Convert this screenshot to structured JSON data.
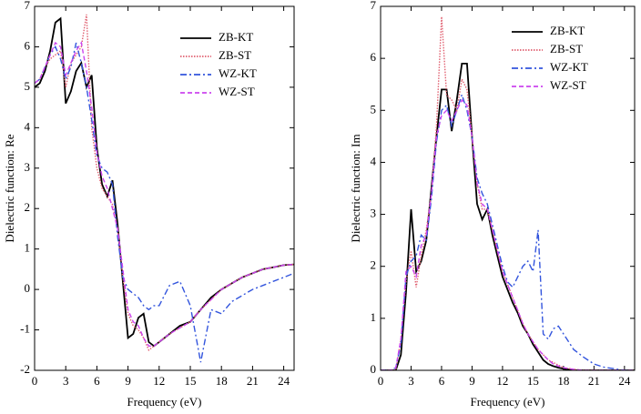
{
  "chart_data": [
    {
      "type": "line",
      "ylabel": "Dielectric function: Re",
      "xlabel": "Frequency (eV)",
      "x": [
        0,
        0.5,
        1,
        1.5,
        2,
        2.5,
        3,
        3.5,
        4,
        4.5,
        5,
        5.5,
        6,
        6.5,
        7,
        7.5,
        8,
        8.5,
        9,
        9.5,
        10,
        10.5,
        11,
        11.5,
        12,
        13,
        14,
        15,
        16,
        17,
        18,
        19,
        20,
        21,
        22,
        23,
        24,
        25
      ],
      "xlim": [
        0,
        25
      ],
      "xticks": [
        0,
        3,
        6,
        9,
        12,
        15,
        18,
        21,
        24
      ],
      "ylim": [
        -2,
        7
      ],
      "yticks": [
        -2,
        -1,
        0,
        1,
        2,
        3,
        4,
        5,
        6,
        7
      ],
      "legend": "upper right",
      "series": [
        {
          "name": "ZB-KT",
          "color": "#000000",
          "style": "solid",
          "values": [
            5.0,
            5.1,
            5.4,
            5.9,
            6.6,
            6.7,
            4.6,
            4.9,
            5.4,
            5.6,
            5.0,
            5.3,
            3.5,
            2.6,
            2.3,
            2.7,
            1.6,
            0.2,
            -1.2,
            -1.1,
            -0.7,
            -0.6,
            -1.3,
            -1.4,
            -1.3,
            -1.1,
            -0.9,
            -0.8,
            -0.5,
            -0.2,
            0,
            0.15,
            0.3,
            0.4,
            0.5,
            0.55,
            0.6,
            0.62
          ]
        },
        {
          "name": "ZB-ST",
          "color": "#e06070",
          "style": "dotted",
          "values": [
            5.1,
            5.2,
            5.5,
            5.7,
            5.8,
            5.9,
            5.0,
            5.6,
            5.8,
            6.0,
            6.8,
            4.0,
            3.0,
            2.5,
            2.3,
            2.1,
            1.5,
            0.3,
            -0.6,
            -0.9,
            -1.0,
            -1.2,
            -1.5,
            -1.4,
            -1.3,
            -1.1,
            -0.95,
            -0.8,
            -0.5,
            -0.25,
            0,
            0.15,
            0.3,
            0.4,
            0.5,
            0.55,
            0.6,
            0.62
          ]
        },
        {
          "name": "WZ-KT",
          "color": "#3355dd",
          "style": "dashdot",
          "values": [
            5.1,
            5.2,
            5.5,
            5.8,
            6.0,
            5.7,
            5.2,
            5.5,
            6.1,
            5.6,
            5.0,
            4.2,
            3.3,
            3.0,
            2.9,
            2.6,
            1.3,
            0.3,
            0,
            -0.1,
            -0.2,
            -0.4,
            -0.5,
            -0.4,
            -0.4,
            0.1,
            0.2,
            -0.4,
            -1.8,
            -0.5,
            -0.6,
            -0.3,
            -0.15,
            0,
            0.1,
            0.2,
            0.3,
            0.4
          ]
        },
        {
          "name": "WZ-ST",
          "color": "#cc44ee",
          "style": "dashed",
          "values": [
            5.1,
            5.2,
            5.5,
            5.8,
            6.1,
            6.0,
            5.3,
            5.6,
            5.9,
            6.1,
            5.4,
            4.5,
            3.4,
            2.8,
            2.5,
            2.0,
            1.5,
            0.5,
            -0.5,
            -0.8,
            -0.9,
            -1.2,
            -1.4,
            -1.4,
            -1.3,
            -1.1,
            -0.95,
            -0.8,
            -0.5,
            -0.25,
            0,
            0.15,
            0.3,
            0.4,
            0.5,
            0.55,
            0.6,
            0.62
          ]
        }
      ]
    },
    {
      "type": "line",
      "ylabel": "Dielectric function: Im",
      "xlabel": "Frequency (eV)",
      "x": [
        0,
        0.5,
        1,
        1.5,
        2,
        2.5,
        3,
        3.5,
        4,
        4.5,
        5,
        5.5,
        6,
        6.5,
        7,
        7.5,
        8,
        8.5,
        9,
        9.5,
        10,
        10.5,
        11,
        11.5,
        12,
        12.5,
        13,
        13.5,
        14,
        14.5,
        15,
        15.5,
        16,
        16.5,
        17,
        17.5,
        18,
        19,
        20,
        21,
        22,
        23,
        24,
        25
      ],
      "xlim": [
        0,
        25
      ],
      "xticks": [
        0,
        3,
        6,
        9,
        12,
        15,
        18,
        21,
        24
      ],
      "ylim": [
        0,
        7
      ],
      "yticks": [
        0,
        1,
        2,
        3,
        4,
        5,
        6,
        7
      ],
      "legend": "upper right",
      "series": [
        {
          "name": "ZB-KT",
          "color": "#000000",
          "style": "solid",
          "values": [
            0,
            0,
            0,
            0,
            0.3,
            1.5,
            3.1,
            1.9,
            2.1,
            2.5,
            3.5,
            4.5,
            5.4,
            5.4,
            4.6,
            5.2,
            5.9,
            5.9,
            4.5,
            3.2,
            2.9,
            3.1,
            2.6,
            2.2,
            1.8,
            1.55,
            1.3,
            1.1,
            0.85,
            0.7,
            0.5,
            0.35,
            0.2,
            0.12,
            0.08,
            0.05,
            0.03,
            0,
            0,
            0,
            0,
            0,
            0,
            0
          ]
        },
        {
          "name": "ZB-ST",
          "color": "#e06070",
          "style": "dotted",
          "values": [
            0,
            0,
            0,
            0,
            0.6,
            1.7,
            2.3,
            1.6,
            2.2,
            2.7,
            3.4,
            4.7,
            6.8,
            5.3,
            5.2,
            5.0,
            5.6,
            5.4,
            4.5,
            3.6,
            3.1,
            3.1,
            2.7,
            2.3,
            1.9,
            1.65,
            1.4,
            1.15,
            0.9,
            0.7,
            0.55,
            0.4,
            0.3,
            0.2,
            0.15,
            0.1,
            0.05,
            0.02,
            0,
            0,
            0,
            0,
            0,
            0
          ]
        },
        {
          "name": "WZ-KT",
          "color": "#3355dd",
          "style": "dashdot",
          "values": [
            0,
            0,
            0,
            0.05,
            0.5,
            1.8,
            2.1,
            2.2,
            2.6,
            2.5,
            3.3,
            4.4,
            5.0,
            5.1,
            4.7,
            5.0,
            5.3,
            5.0,
            4.5,
            3.7,
            3.4,
            3.2,
            2.8,
            2.4,
            2.0,
            1.7,
            1.6,
            1.8,
            2.0,
            2.1,
            1.9,
            2.7,
            0.7,
            0.6,
            0.8,
            0.85,
            0.7,
            0.4,
            0.25,
            0.12,
            0.06,
            0.03,
            0,
            0
          ]
        },
        {
          "name": "WZ-ST",
          "color": "#cc44ee",
          "style": "dashed",
          "values": [
            0,
            0,
            0,
            0.05,
            0.6,
            1.9,
            2.0,
            1.8,
            2.4,
            2.6,
            3.4,
            4.5,
            4.9,
            5.0,
            4.8,
            5.0,
            5.2,
            5.1,
            4.5,
            3.6,
            3.2,
            3.1,
            2.7,
            2.3,
            1.9,
            1.65,
            1.4,
            1.15,
            0.9,
            0.7,
            0.55,
            0.4,
            0.3,
            0.2,
            0.12,
            0.08,
            0.05,
            0.02,
            0,
            0,
            0,
            0,
            0,
            0
          ]
        }
      ]
    }
  ]
}
